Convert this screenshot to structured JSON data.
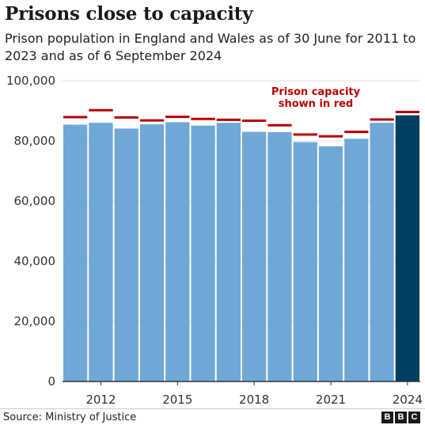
{
  "title": "Prisons close to capacity",
  "subtitle": "Prison population in England and Wales as of 30 June for 2011 to 2023 and as of 6 September 2024",
  "source": "Source: Ministry of Justice",
  "logo": [
    "B",
    "B",
    "C"
  ],
  "colors": {
    "population": "#6fa8d6",
    "latest": "#003f5f",
    "capacity": "#b80000",
    "axis": "#333333",
    "grid": "#e2e2e2"
  },
  "chart_data": {
    "type": "bar",
    "categories": [
      "2011",
      "2012",
      "2013",
      "2014",
      "2015",
      "2016",
      "2017",
      "2018",
      "2019",
      "2020",
      "2021",
      "2022",
      "2023",
      "2024"
    ],
    "x_tick_labels": [
      "2012",
      "2015",
      "2018",
      "2021",
      "2024"
    ],
    "series": [
      {
        "values": [
          85400,
          86000,
          84100,
          85500,
          86200,
          85100,
          86000,
          83000,
          82900,
          79600,
          78200,
          80700,
          86000,
          88500
        ]
      },
      {
        "values": [
          87900,
          90200,
          87800,
          86800,
          88000,
          87300,
          87000,
          86700,
          85200,
          82100,
          81500,
          83000,
          87100,
          89600
        ]
      }
    ],
    "highlight_last": true,
    "y_ticks": [
      0,
      20000,
      40000,
      60000,
      80000,
      100000
    ],
    "y_tick_labels": [
      "0",
      "20,000",
      "40,000",
      "60,000",
      "80,000",
      "100,000"
    ],
    "ylim": [
      0,
      100000
    ],
    "grid": true,
    "annotation": {
      "lines": [
        "Prison capacity",
        "shown in red"
      ]
    }
  }
}
